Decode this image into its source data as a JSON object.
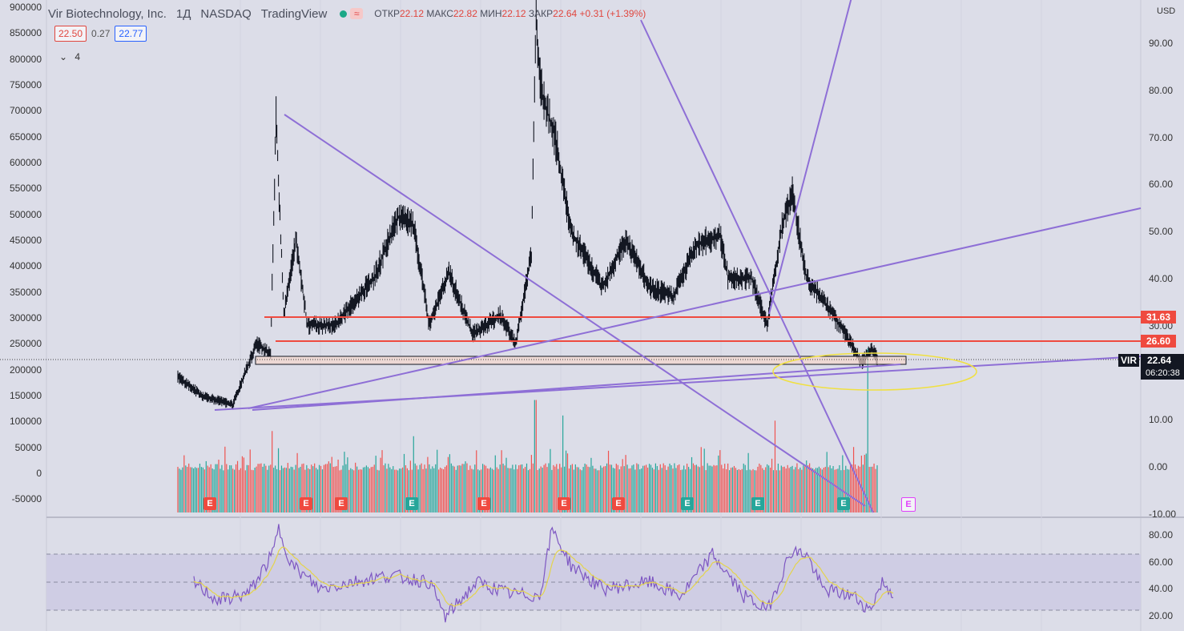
{
  "header": {
    "title": "Vir Biotechnology, Inc.",
    "interval": "1Д",
    "exchange": "NASDAQ",
    "source": "TradingView",
    "ohlc_open_label": "ОТКР",
    "ohlc_open": "22.12",
    "ohlc_high_label": "МАКС",
    "ohlc_high": "22.82",
    "ohlc_low_label": "МИН",
    "ohlc_low": "22.12",
    "ohlc_close_label": "ЗАКР",
    "ohlc_close": "22.64",
    "change": "+0.31 (+1.39%)"
  },
  "trade": {
    "sell": "22.50",
    "spread": "0.27",
    "buy": "22.77"
  },
  "indicators_collapse": {
    "icon": "chevron-down-icon",
    "count": "4"
  },
  "currency": "USD",
  "left_axis_ticks": [
    "900000",
    "850000",
    "800000",
    "750000",
    "700000",
    "650000",
    "600000",
    "550000",
    "500000",
    "450000",
    "400000",
    "350000",
    "300000",
    "250000",
    "200000",
    "150000",
    "100000",
    "50000",
    "0",
    "-50000"
  ],
  "right_axis_ticks": [
    "90.00",
    "80.00",
    "70.00",
    "60.00",
    "50.00",
    "40.00",
    "30.00",
    "10.00",
    "0.00",
    "-10.00"
  ],
  "rsi_axis_ticks": [
    "80.00",
    "60.00",
    "40.00",
    "20.00"
  ],
  "level_tags": [
    {
      "value": "31.63",
      "color": "#ef4a3f"
    },
    {
      "value": "26.60",
      "color": "#ef4a3f"
    }
  ],
  "last_price": {
    "symbol": "VIR",
    "value": "22.64",
    "countdown": "06:20:38",
    "color": "#131722"
  },
  "earnings_badge_label": "E",
  "earnings_badges": [
    {
      "type": "red"
    },
    {
      "type": "red"
    },
    {
      "type": "red"
    },
    {
      "type": "green"
    },
    {
      "type": "red"
    },
    {
      "type": "red"
    },
    {
      "type": "red"
    },
    {
      "type": "green"
    },
    {
      "type": "green"
    },
    {
      "type": "green"
    },
    {
      "type": "future"
    }
  ],
  "colors": {
    "background": "#dcdde8",
    "candle": "#131722",
    "trendline": "#8e6fd6",
    "level": "#ef4a3f",
    "volume_up": "#26a69a",
    "volume_down": "#ef5350",
    "rsi": "#7e57c2",
    "rsi_ma": "#e4d44c",
    "highlight_ellipse": "#f0e040",
    "badge_red": "#ef4a3f",
    "badge_green": "#26a69a",
    "badge_future": "#e040fb"
  },
  "chart_data": [
    {
      "type": "line",
      "name": "price",
      "x_unit": "trading day",
      "y_axis": "right",
      "ylim": [
        -10,
        95
      ],
      "key_points": [
        {
          "x": 0,
          "y": 19
        },
        {
          "x": 30,
          "y": 15
        },
        {
          "x": 70,
          "y": 13
        },
        {
          "x": 100,
          "y": 26
        },
        {
          "x": 118,
          "y": 24
        },
        {
          "x": 125,
          "y": 74
        },
        {
          "x": 135,
          "y": 32
        },
        {
          "x": 150,
          "y": 48
        },
        {
          "x": 165,
          "y": 30
        },
        {
          "x": 200,
          "y": 30
        },
        {
          "x": 250,
          "y": 40
        },
        {
          "x": 280,
          "y": 53
        },
        {
          "x": 300,
          "y": 51
        },
        {
          "x": 320,
          "y": 30
        },
        {
          "x": 345,
          "y": 41
        },
        {
          "x": 375,
          "y": 28
        },
        {
          "x": 410,
          "y": 32
        },
        {
          "x": 430,
          "y": 26
        },
        {
          "x": 450,
          "y": 45
        },
        {
          "x": 456,
          "y": 95
        },
        {
          "x": 462,
          "y": 80
        },
        {
          "x": 480,
          "y": 70
        },
        {
          "x": 500,
          "y": 50
        },
        {
          "x": 540,
          "y": 38
        },
        {
          "x": 570,
          "y": 48
        },
        {
          "x": 600,
          "y": 38
        },
        {
          "x": 630,
          "y": 36
        },
        {
          "x": 660,
          "y": 47
        },
        {
          "x": 690,
          "y": 49
        },
        {
          "x": 700,
          "y": 40
        },
        {
          "x": 730,
          "y": 40
        },
        {
          "x": 750,
          "y": 30
        },
        {
          "x": 770,
          "y": 52
        },
        {
          "x": 782,
          "y": 58
        },
        {
          "x": 800,
          "y": 40
        },
        {
          "x": 830,
          "y": 33
        },
        {
          "x": 850,
          "y": 28
        },
        {
          "x": 870,
          "y": 22
        },
        {
          "x": 884,
          "y": 25
        },
        {
          "x": 890,
          "y": 22.64
        }
      ]
    },
    {
      "type": "bar",
      "name": "volume",
      "y_axis": "left",
      "ylim": [
        -60000,
        900000
      ],
      "peaks": [
        {
          "x": 120,
          "y": 80000
        },
        {
          "x": 300,
          "y": 70000
        },
        {
          "x": 455,
          "y": 140000
        },
        {
          "x": 490,
          "y": 110000
        },
        {
          "x": 760,
          "y": 100000
        },
        {
          "x": 878,
          "y": 240000
        }
      ]
    },
    {
      "type": "line",
      "name": "RSI",
      "ylim": [
        20,
        85
      ],
      "guides": [
        70,
        50,
        30
      ],
      "key_points": [
        {
          "x": 0,
          "y": 50
        },
        {
          "x": 30,
          "y": 37
        },
        {
          "x": 70,
          "y": 42
        },
        {
          "x": 100,
          "y": 70
        },
        {
          "x": 108,
          "y": 88
        },
        {
          "x": 125,
          "y": 62
        },
        {
          "x": 160,
          "y": 45
        },
        {
          "x": 200,
          "y": 50
        },
        {
          "x": 250,
          "y": 55
        },
        {
          "x": 300,
          "y": 50
        },
        {
          "x": 320,
          "y": 25
        },
        {
          "x": 360,
          "y": 50
        },
        {
          "x": 400,
          "y": 42
        },
        {
          "x": 440,
          "y": 40
        },
        {
          "x": 456,
          "y": 88
        },
        {
          "x": 480,
          "y": 62
        },
        {
          "x": 520,
          "y": 45
        },
        {
          "x": 580,
          "y": 50
        },
        {
          "x": 620,
          "y": 40
        },
        {
          "x": 660,
          "y": 70
        },
        {
          "x": 700,
          "y": 40
        },
        {
          "x": 730,
          "y": 30
        },
        {
          "x": 760,
          "y": 72
        },
        {
          "x": 780,
          "y": 70
        },
        {
          "x": 800,
          "y": 45
        },
        {
          "x": 840,
          "y": 40
        },
        {
          "x": 860,
          "y": 30
        },
        {
          "x": 876,
          "y": 50
        },
        {
          "x": 890,
          "y": 42
        }
      ]
    }
  ]
}
